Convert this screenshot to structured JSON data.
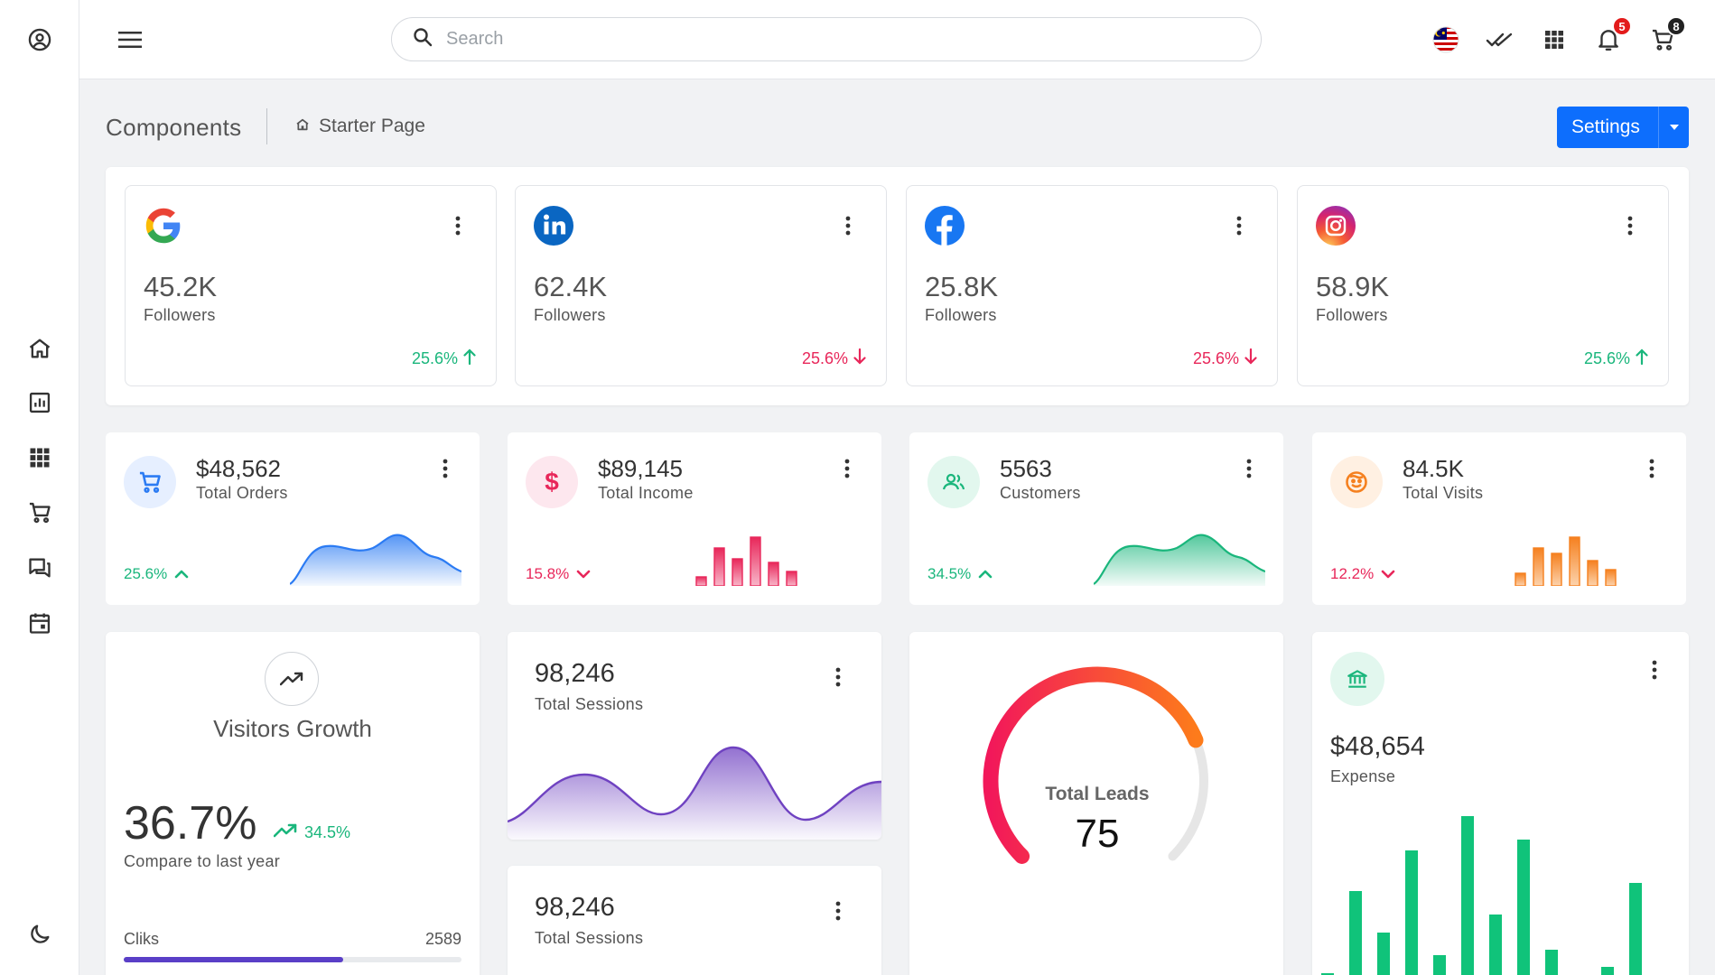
{
  "search": {
    "placeholder": "Search"
  },
  "notifications": {
    "count": "5"
  },
  "cart": {
    "count": "8"
  },
  "header": {
    "title": "Components",
    "breadcrumb": "Starter Page",
    "settings_label": "Settings"
  },
  "social": [
    {
      "network": "google",
      "value": "45.2K",
      "label": "Followers",
      "trend": "25.6%",
      "direction": "up"
    },
    {
      "network": "linkedin",
      "value": "62.4K",
      "label": "Followers",
      "trend": "25.6%",
      "direction": "down"
    },
    {
      "network": "facebook",
      "value": "25.8K",
      "label": "Followers",
      "trend": "25.6%",
      "direction": "down"
    },
    {
      "network": "instagram",
      "value": "58.9K",
      "label": "Followers",
      "trend": "25.6%",
      "direction": "up"
    }
  ],
  "stats": [
    {
      "value": "$48,562",
      "label": "Total Orders",
      "trend": "25.6%",
      "direction": "up",
      "icon": "cart-icon",
      "color": "#2b7bf3"
    },
    {
      "value": "$89,145",
      "label": "Total Income",
      "trend": "15.8%",
      "direction": "down",
      "icon": "dollar-icon",
      "color": "#e8275a"
    },
    {
      "value": "5563",
      "label": "Customers",
      "trend": "34.5%",
      "direction": "up",
      "icon": "users-icon",
      "color": "#1ab67c"
    },
    {
      "value": "84.5K",
      "label": "Total Visits",
      "trend": "12.2%",
      "direction": "down",
      "icon": "face-icon",
      "color": "#f5801f"
    }
  ],
  "visitors": {
    "title": "Visitors Growth",
    "value": "36.7%",
    "change": "34.5%",
    "compare": "Compare to last year",
    "progress_label": "Cliks",
    "progress_value": "2589",
    "progress_fraction": 0.65
  },
  "sessions": [
    {
      "value": "98,246",
      "label": "Total Sessions"
    },
    {
      "value": "98,246",
      "label": "Total Sessions"
    }
  ],
  "leads": {
    "label": "Total Leads",
    "value": "75",
    "fraction": 0.75
  },
  "expense": {
    "value": "$48,654",
    "label": "Expense"
  },
  "colors": {
    "primary": "#0d6efd",
    "green": "#1ab67c",
    "red": "#e8275a",
    "orange": "#f5801f",
    "purple": "#6f42c1",
    "bar_green": "#10c37a"
  }
}
